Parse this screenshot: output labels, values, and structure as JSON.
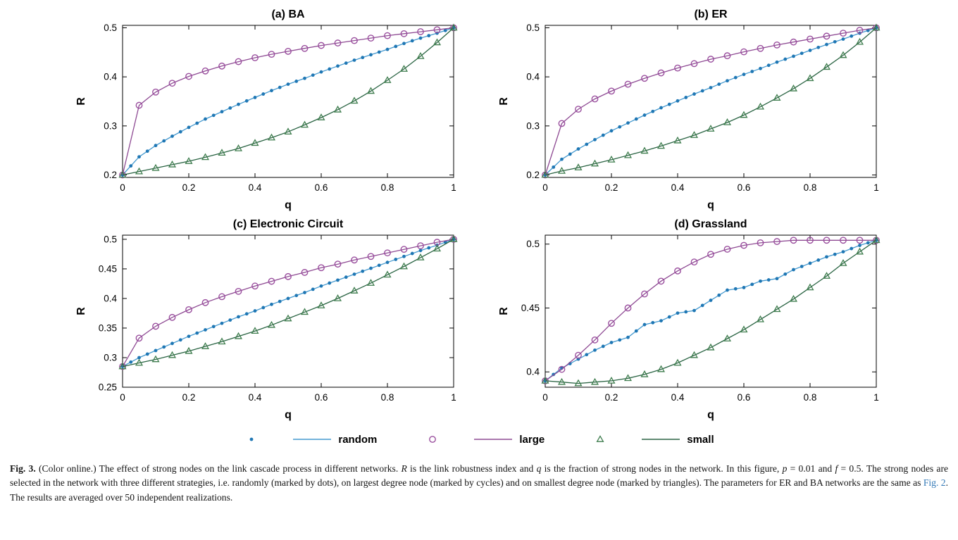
{
  "figure": {
    "link_color": "#3379b7",
    "series_styles": {
      "random": {
        "line": "#4499cf",
        "marker": "#1f77b4"
      },
      "large": {
        "line": "#8e4a93",
        "marker": "#9a4f9e"
      },
      "small": {
        "line": "#2a6443",
        "marker": "#3f7d4e"
      }
    },
    "legend": {
      "items": [
        {
          "label": "random",
          "marker": "dot",
          "marker_color": "#1f77b4",
          "line_color": "#4499cf"
        },
        {
          "label": "large",
          "marker": "circle",
          "marker_color": "#9a4f9e",
          "line_color": "#8e4a93"
        },
        {
          "label": "small",
          "marker": "triangle",
          "marker_color": "#3f7d4e",
          "line_color": "#2a6443"
        }
      ]
    },
    "caption_segments": [
      {
        "t": "Fig. 3.",
        "b": true
      },
      {
        "t": " (Color online.) The effect of strong nodes on the link cascade process in different networks. "
      },
      {
        "t": "R",
        "i": true
      },
      {
        "t": " is the link robustness index and "
      },
      {
        "t": "q",
        "i": true
      },
      {
        "t": " is the fraction of strong nodes in the network. In this figure, "
      },
      {
        "t": "p",
        "i": true
      },
      {
        "t": " = 0.01 and "
      },
      {
        "t": "f",
        "i": true
      },
      {
        "t": " = 0.5. The strong nodes are selected in the network with three different strategies, i.e. randomly (marked by dots), on largest degree node (marked by cycles) and on smallest degree node (marked by triangles). The parameters for ER and BA networks are the same as "
      },
      {
        "t": "Fig. 2",
        "link": true
      },
      {
        "t": ". The results are averaged over 50 independent realizations."
      }
    ]
  },
  "chart_data": [
    {
      "type": "line",
      "title": "(a) BA",
      "xlabel": "q",
      "ylabel": "R",
      "xlim": [
        0,
        1
      ],
      "ylim": [
        0.195,
        0.505
      ],
      "xticks": [
        0,
        0.2,
        0.4,
        0.6,
        0.8,
        1
      ],
      "yticks": [
        0.2,
        0.3,
        0.4,
        0.5
      ],
      "x": [
        0,
        0.05,
        0.1,
        0.15,
        0.2,
        0.25,
        0.3,
        0.35,
        0.4,
        0.45,
        0.5,
        0.55,
        0.6,
        0.65,
        0.7,
        0.75,
        0.8,
        0.85,
        0.9,
        0.95,
        1
      ],
      "series": [
        {
          "name": "random",
          "marker": "dot",
          "values": [
            0.2,
            0.237,
            0.26,
            0.279,
            0.297,
            0.314,
            0.329,
            0.344,
            0.358,
            0.372,
            0.385,
            0.397,
            0.41,
            0.422,
            0.434,
            0.445,
            0.456,
            0.468,
            0.479,
            0.489,
            0.5
          ]
        },
        {
          "name": "large",
          "marker": "circle",
          "values": [
            0.2,
            0.342,
            0.369,
            0.387,
            0.401,
            0.412,
            0.422,
            0.431,
            0.439,
            0.446,
            0.452,
            0.458,
            0.464,
            0.469,
            0.474,
            0.479,
            0.484,
            0.488,
            0.492,
            0.496,
            0.5
          ]
        },
        {
          "name": "small",
          "marker": "triangle",
          "values": [
            0.2,
            0.207,
            0.214,
            0.221,
            0.228,
            0.236,
            0.245,
            0.254,
            0.265,
            0.276,
            0.288,
            0.302,
            0.317,
            0.333,
            0.351,
            0.371,
            0.393,
            0.416,
            0.442,
            0.47,
            0.5
          ]
        }
      ]
    },
    {
      "type": "line",
      "title": "(b) ER",
      "xlabel": "q",
      "ylabel": "R",
      "xlim": [
        0,
        1
      ],
      "ylim": [
        0.195,
        0.505
      ],
      "xticks": [
        0,
        0.2,
        0.4,
        0.6,
        0.8,
        1
      ],
      "yticks": [
        0.2,
        0.3,
        0.4,
        0.5
      ],
      "x": [
        0,
        0.05,
        0.1,
        0.15,
        0.2,
        0.25,
        0.3,
        0.35,
        0.4,
        0.45,
        0.5,
        0.55,
        0.6,
        0.65,
        0.7,
        0.75,
        0.8,
        0.85,
        0.9,
        0.95,
        1
      ],
      "series": [
        {
          "name": "random",
          "marker": "dot",
          "values": [
            0.2,
            0.232,
            0.253,
            0.272,
            0.29,
            0.306,
            0.322,
            0.337,
            0.351,
            0.365,
            0.378,
            0.392,
            0.405,
            0.417,
            0.43,
            0.442,
            0.454,
            0.466,
            0.477,
            0.489,
            0.5
          ]
        },
        {
          "name": "large",
          "marker": "circle",
          "values": [
            0.2,
            0.305,
            0.334,
            0.355,
            0.371,
            0.385,
            0.397,
            0.408,
            0.418,
            0.427,
            0.436,
            0.443,
            0.451,
            0.458,
            0.465,
            0.471,
            0.477,
            0.483,
            0.489,
            0.495,
            0.5
          ]
        },
        {
          "name": "small",
          "marker": "triangle",
          "values": [
            0.2,
            0.208,
            0.215,
            0.223,
            0.231,
            0.24,
            0.249,
            0.259,
            0.27,
            0.281,
            0.294,
            0.307,
            0.322,
            0.339,
            0.357,
            0.376,
            0.397,
            0.42,
            0.444,
            0.471,
            0.5
          ]
        }
      ]
    },
    {
      "type": "line",
      "title": "(c) Electronic Circuit",
      "xlabel": "q",
      "ylabel": "R",
      "xlim": [
        0,
        1
      ],
      "ylim": [
        0.25,
        0.507
      ],
      "xticks": [
        0,
        0.2,
        0.4,
        0.6,
        0.8,
        1
      ],
      "yticks": [
        0.25,
        0.3,
        0.35,
        0.4,
        0.45,
        0.5
      ],
      "x": [
        0,
        0.05,
        0.1,
        0.15,
        0.2,
        0.25,
        0.3,
        0.35,
        0.4,
        0.45,
        0.5,
        0.55,
        0.6,
        0.65,
        0.7,
        0.75,
        0.8,
        0.85,
        0.9,
        0.95,
        1
      ],
      "series": [
        {
          "name": "random",
          "marker": "dot",
          "values": [
            0.285,
            0.3,
            0.312,
            0.324,
            0.336,
            0.347,
            0.358,
            0.369,
            0.379,
            0.39,
            0.4,
            0.41,
            0.421,
            0.431,
            0.441,
            0.451,
            0.461,
            0.471,
            0.481,
            0.49,
            0.5
          ]
        },
        {
          "name": "large",
          "marker": "circle",
          "values": [
            0.285,
            0.333,
            0.353,
            0.368,
            0.381,
            0.393,
            0.403,
            0.412,
            0.421,
            0.429,
            0.437,
            0.444,
            0.452,
            0.458,
            0.465,
            0.471,
            0.477,
            0.483,
            0.489,
            0.495,
            0.5
          ]
        },
        {
          "name": "small",
          "marker": "triangle",
          "values": [
            0.285,
            0.291,
            0.297,
            0.304,
            0.311,
            0.319,
            0.327,
            0.336,
            0.345,
            0.355,
            0.366,
            0.377,
            0.388,
            0.4,
            0.413,
            0.426,
            0.44,
            0.454,
            0.469,
            0.484,
            0.5
          ]
        }
      ]
    },
    {
      "type": "line",
      "title": "(d) Grassland",
      "xlabel": "q",
      "ylabel": "R",
      "xlim": [
        0,
        1
      ],
      "ylim": [
        0.388,
        0.507
      ],
      "xticks": [
        0,
        0.2,
        0.4,
        0.6,
        0.8,
        1
      ],
      "yticks": [
        0.4,
        0.45,
        0.5
      ],
      "x": [
        0,
        0.05,
        0.1,
        0.15,
        0.2,
        0.25,
        0.3,
        0.35,
        0.4,
        0.45,
        0.5,
        0.55,
        0.6,
        0.65,
        0.7,
        0.75,
        0.8,
        0.85,
        0.9,
        0.95,
        1
      ],
      "series": [
        {
          "name": "random",
          "marker": "dot",
          "values": [
            0.393,
            0.403,
            0.41,
            0.417,
            0.423,
            0.427,
            0.437,
            0.44,
            0.446,
            0.448,
            0.456,
            0.464,
            0.466,
            0.471,
            0.473,
            0.48,
            0.485,
            0.49,
            0.494,
            0.499,
            0.503
          ]
        },
        {
          "name": "large",
          "marker": "circle",
          "values": [
            0.393,
            0.402,
            0.413,
            0.425,
            0.438,
            0.45,
            0.461,
            0.471,
            0.479,
            0.486,
            0.492,
            0.496,
            0.499,
            0.501,
            0.502,
            0.503,
            0.503,
            0.503,
            0.503,
            0.503,
            0.503
          ]
        },
        {
          "name": "small",
          "marker": "triangle",
          "values": [
            0.393,
            0.392,
            0.391,
            0.392,
            0.393,
            0.395,
            0.398,
            0.402,
            0.407,
            0.413,
            0.419,
            0.426,
            0.433,
            0.441,
            0.449,
            0.457,
            0.466,
            0.475,
            0.485,
            0.494,
            0.503
          ]
        }
      ]
    }
  ]
}
